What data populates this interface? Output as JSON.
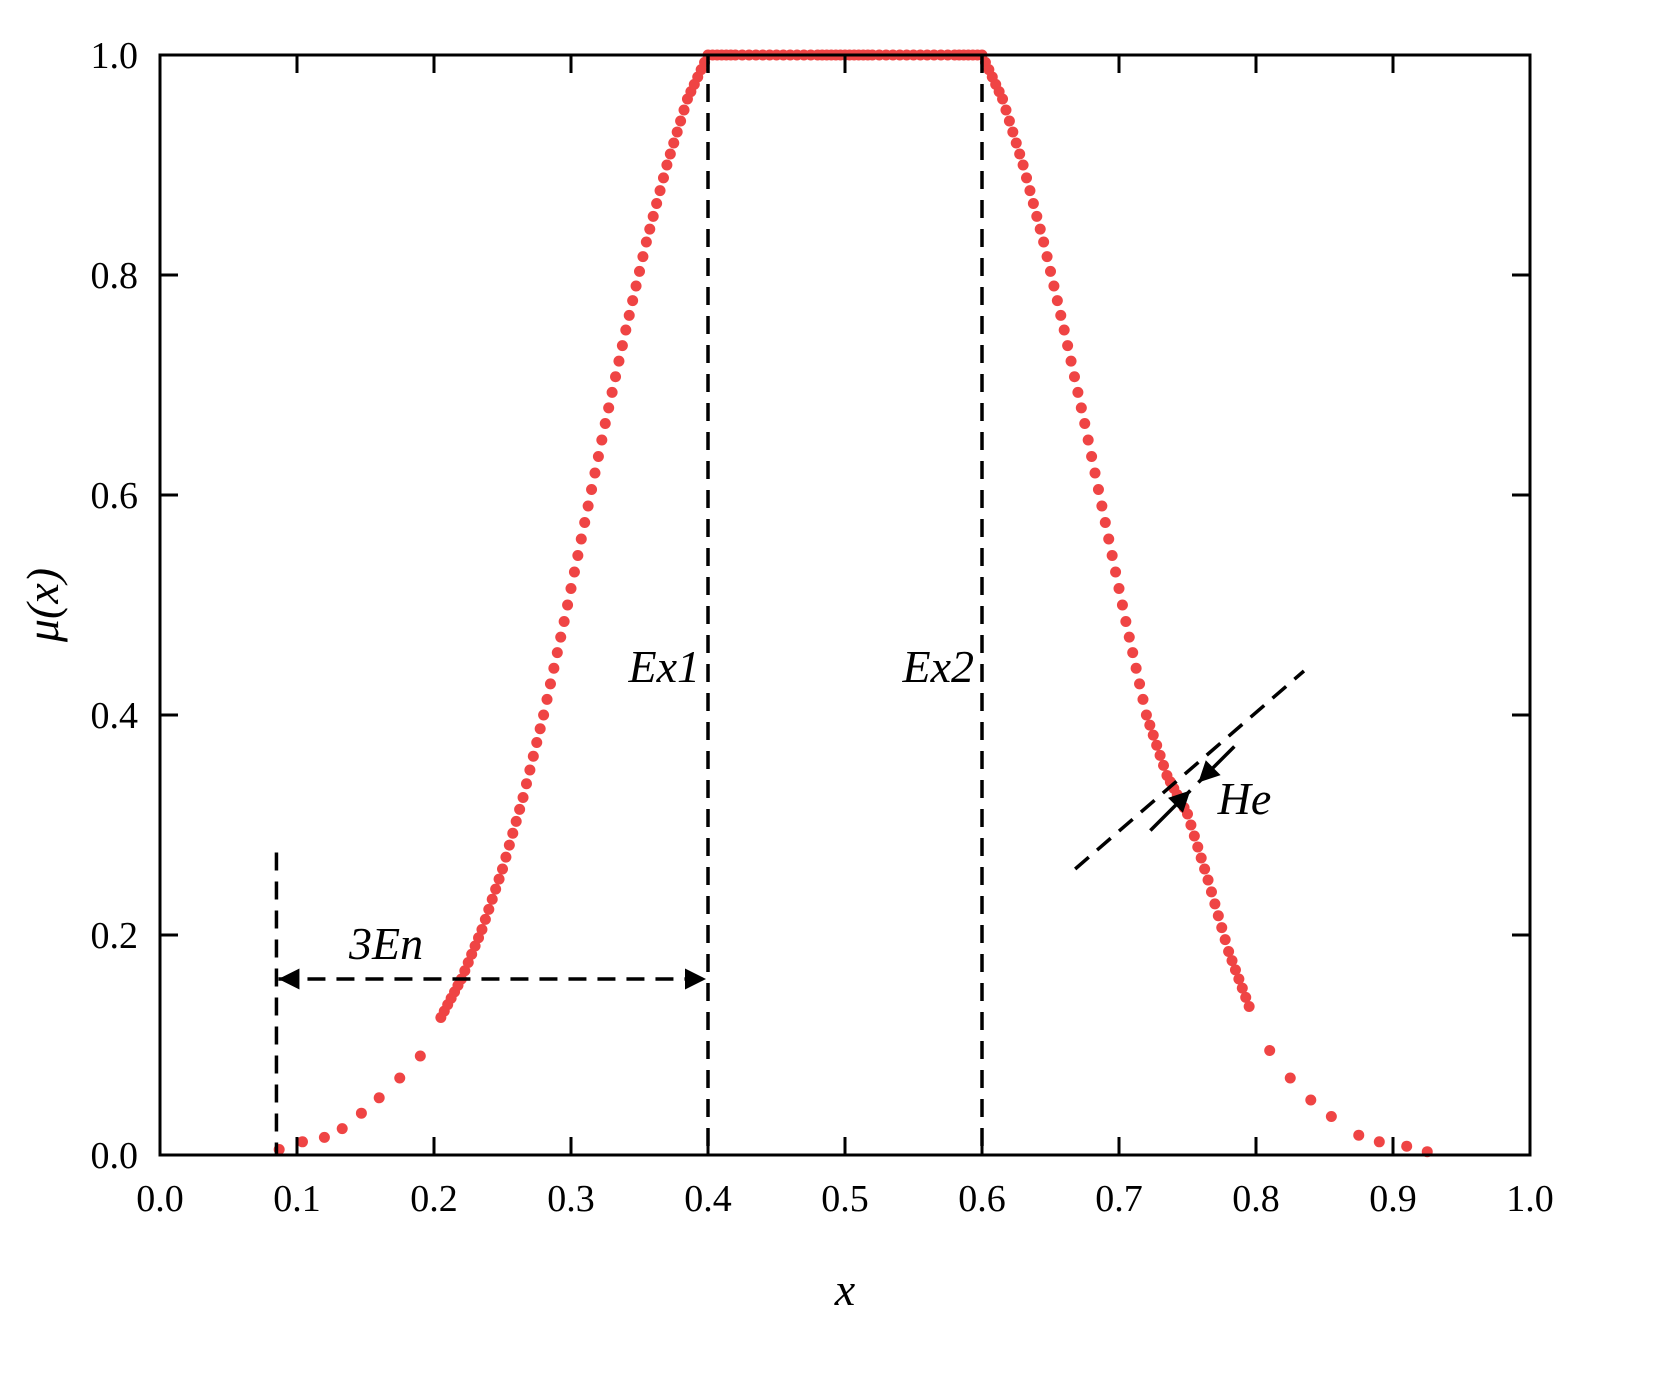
{
  "chart_data": {
    "type": "scatter",
    "title": "",
    "xlabel": "x",
    "ylabel": "μ(x)",
    "xlim": [
      0.0,
      1.0
    ],
    "ylim": [
      0.0,
      1.0
    ],
    "x_ticks": [
      "0.0",
      "0.1",
      "0.2",
      "0.3",
      "0.4",
      "0.5",
      "0.6",
      "0.7",
      "0.8",
      "0.9",
      "1.0"
    ],
    "y_ticks": [
      "0.0",
      "0.2",
      "0.4",
      "0.6",
      "0.8",
      "1.0"
    ],
    "grid": false,
    "series_color": "#ef4444",
    "parameters": {
      "Ex1": 0.4,
      "Ex2": 0.6,
      "En_approx": 0.105
    },
    "series": [
      {
        "points": [
          [
            0.087,
            0.005
          ],
          [
            0.104,
            0.012
          ],
          [
            0.12,
            0.016
          ],
          [
            0.133,
            0.024
          ],
          [
            0.147,
            0.038
          ],
          [
            0.16,
            0.052
          ],
          [
            0.175,
            0.07
          ],
          [
            0.19,
            0.09
          ],
          [
            0.205,
            0.125
          ],
          [
            0.22,
            0.16
          ],
          [
            0.235,
            0.205
          ],
          [
            0.25,
            0.26
          ],
          [
            0.265,
            0.325
          ],
          [
            0.28,
            0.4
          ],
          [
            0.295,
            0.485
          ],
          [
            0.31,
            0.575
          ],
          [
            0.325,
            0.665
          ],
          [
            0.34,
            0.75
          ],
          [
            0.355,
            0.83
          ],
          [
            0.37,
            0.9
          ],
          [
            0.385,
            0.96
          ],
          [
            0.4,
            1.0
          ],
          [
            0.42,
            1.0
          ],
          [
            0.45,
            1.0
          ],
          [
            0.48,
            1.0
          ],
          [
            0.5,
            1.0
          ],
          [
            0.52,
            1.0
          ],
          [
            0.55,
            1.0
          ],
          [
            0.58,
            1.0
          ],
          [
            0.6,
            1.0
          ],
          [
            0.615,
            0.96
          ],
          [
            0.63,
            0.9
          ],
          [
            0.645,
            0.83
          ],
          [
            0.66,
            0.75
          ],
          [
            0.675,
            0.665
          ],
          [
            0.69,
            0.575
          ],
          [
            0.705,
            0.485
          ],
          [
            0.72,
            0.4
          ],
          [
            0.735,
            0.345
          ],
          [
            0.75,
            0.31
          ],
          [
            0.765,
            0.25
          ],
          [
            0.78,
            0.185
          ],
          [
            0.795,
            0.135
          ],
          [
            0.81,
            0.095
          ],
          [
            0.825,
            0.07
          ],
          [
            0.84,
            0.05
          ],
          [
            0.855,
            0.035
          ],
          [
            0.875,
            0.018
          ],
          [
            0.89,
            0.012
          ],
          [
            0.91,
            0.008
          ],
          [
            0.925,
            0.003
          ]
        ]
      }
    ],
    "annotations": [
      {
        "text": "Ex1",
        "x": 0.4
      },
      {
        "text": "Ex2",
        "x": 0.6
      },
      {
        "text": "3En",
        "from_x": 0.085,
        "to_x": 0.4,
        "y": 0.16
      },
      {
        "text": "He",
        "near_x": 0.755,
        "near_y": 0.335
      }
    ]
  }
}
